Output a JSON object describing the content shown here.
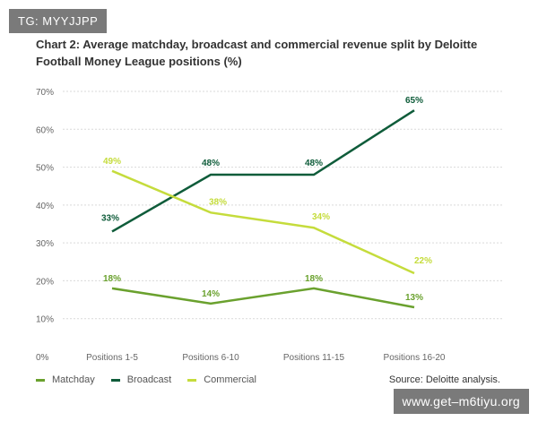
{
  "tag": "TG: MYYJJPP",
  "watermark": "www.get–m6tiyu.org",
  "source": "Source: Deloitte analysis.",
  "chart_data": {
    "type": "line",
    "title": "Chart 2: Average matchday, broadcast and commercial revenue split by Deloitte Football Money League positions (%)",
    "categories": [
      "Positions 1-5",
      "Positions 6-10",
      "Positions 11-15",
      "Positions 16-20"
    ],
    "ylim": [
      0,
      70
    ],
    "yticks": [
      "0%",
      "10%",
      "20%",
      "30%",
      "40%",
      "50%",
      "60%",
      "70%"
    ],
    "grid": true,
    "legend_placement": "bottom-left",
    "series": [
      {
        "name": "Matchday",
        "color": "#6aa12e",
        "values": [
          18,
          14,
          18,
          13
        ],
        "labels": [
          "18%",
          "14%",
          "18%",
          "13%"
        ]
      },
      {
        "name": "Broadcast",
        "color": "#0f5c3a",
        "values": [
          33,
          48,
          48,
          65
        ],
        "labels": [
          "33%",
          "48%",
          "48%",
          "65%"
        ]
      },
      {
        "name": "Commercial",
        "color": "#c5dc3c",
        "values": [
          49,
          38,
          34,
          22
        ],
        "labels": [
          "49%",
          "38%",
          "34%",
          "22%"
        ]
      }
    ]
  }
}
